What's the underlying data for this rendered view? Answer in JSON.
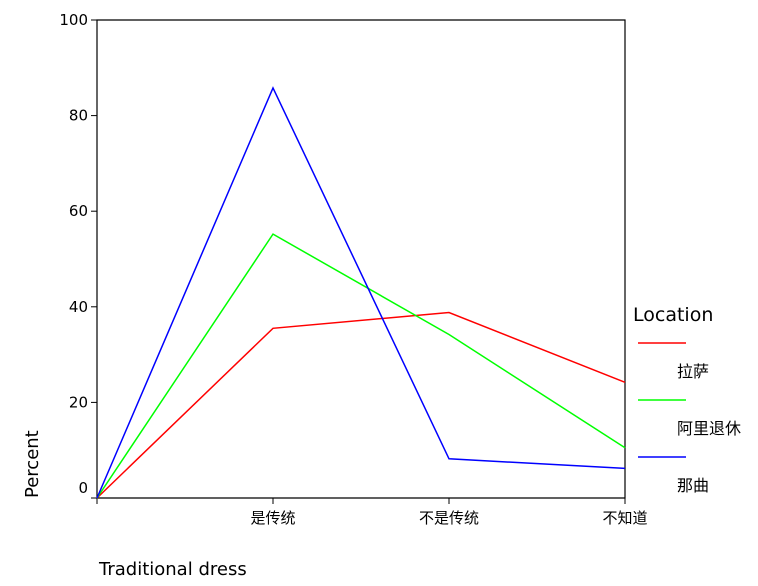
{
  "chart_data": {
    "type": "line",
    "xlabel": "Traditional dress",
    "ylabel": "Percent",
    "categories": [
      "",
      "是传统",
      "不是传统",
      "不知道"
    ],
    "ylim": [
      0,
      100
    ],
    "yticks": [
      0,
      20,
      40,
      60,
      80,
      100
    ],
    "grid": false,
    "legend": {
      "title": "Location",
      "placement": "right"
    },
    "series": [
      {
        "name": "拉萨",
        "color": "#ff0000",
        "values": [
          0,
          35.5,
          38.8,
          24.2
        ]
      },
      {
        "name": "阿里退休",
        "color": "#00ff00",
        "values": [
          0,
          55.2,
          34.2,
          10.5
        ]
      },
      {
        "name": "那曲",
        "color": "#0000ff",
        "values": [
          0,
          85.8,
          8.2,
          6.2
        ]
      }
    ]
  }
}
